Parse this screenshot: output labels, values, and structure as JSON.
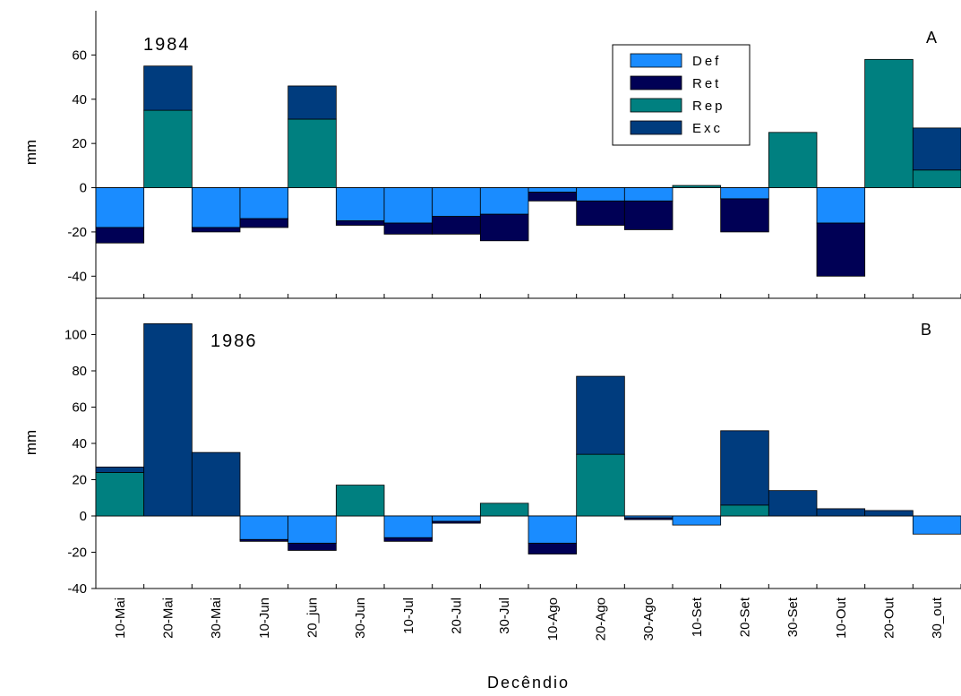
{
  "colors": {
    "Def": "#1a8cff",
    "Ret": "#000055",
    "Rep": "#008080",
    "Exc": "#003c7e"
  },
  "chart_data": [
    {
      "type": "bar",
      "panel_label": "A",
      "year_label": "1984",
      "ylabel": "mm",
      "ylim": [
        -50,
        80
      ],
      "yticks": [
        -40,
        -20,
        0,
        20,
        40,
        60
      ],
      "ytick_labels": [
        "-40",
        "-20",
        "0",
        "20",
        "40",
        "60"
      ],
      "stacked": true,
      "legend": {
        "position": "top-right",
        "entries": [
          "Def",
          "Ret",
          "Rep",
          "Exc"
        ]
      },
      "categories": [
        "10-Mai",
        "20-Mai",
        "30-Mai",
        "10-Jun",
        "20_jun",
        "30-Jun",
        "10-Jul",
        "20-Jul",
        "30-Jul",
        "10-Ago",
        "20-Ago",
        "30-Ago",
        "10-Set",
        "20-Set",
        "30-Set",
        "10-Out",
        "20-Out",
        "30_out"
      ],
      "series": [
        {
          "name": "Def",
          "values": [
            -18,
            0,
            -18,
            -14,
            0,
            -15,
            -16,
            -13,
            -12,
            -2,
            -6,
            -6,
            0,
            -5,
            0,
            -16,
            0,
            0
          ]
        },
        {
          "name": "Ret",
          "values": [
            -7,
            0,
            -2,
            -4,
            0,
            -2,
            -5,
            -8,
            -12,
            -4,
            -11,
            -13,
            0,
            -15,
            0,
            -24,
            0,
            0
          ]
        },
        {
          "name": "Rep",
          "values": [
            0,
            35,
            0,
            0,
            31,
            0,
            0,
            0,
            0,
            0,
            0,
            0,
            1,
            0,
            25,
            0,
            58,
            8
          ]
        },
        {
          "name": "Exc",
          "values": [
            0,
            20,
            0,
            0,
            15,
            0,
            0,
            0,
            0,
            0,
            0,
            0,
            0,
            0,
            0,
            0,
            0,
            19
          ]
        }
      ]
    },
    {
      "type": "bar",
      "panel_label": "B",
      "year_label": "1986",
      "ylabel": "mm",
      "ylim": [
        -40,
        120
      ],
      "yticks": [
        -40,
        -20,
        0,
        20,
        40,
        60,
        80,
        100
      ],
      "ytick_labels": [
        "-40",
        "-20",
        "0",
        "20",
        "40",
        "60",
        "80",
        "100"
      ],
      "stacked": true,
      "categories": [
        "10-Mai",
        "20-Mai",
        "30-Mai",
        "10-Jun",
        "20_jun",
        "30-Jun",
        "10-Jul",
        "20-Jul",
        "30-Jul",
        "10-Ago",
        "20-Ago",
        "30-Ago",
        "10-Set",
        "20-Set",
        "30-Set",
        "10-Out",
        "20-Out",
        "30_out"
      ],
      "series": [
        {
          "name": "Def",
          "values": [
            0,
            0,
            0,
            -13,
            -15,
            0,
            -12,
            -3,
            0,
            -15,
            0,
            -1,
            -5,
            0,
            0,
            0,
            0,
            -10
          ]
        },
        {
          "name": "Ret",
          "values": [
            0,
            0,
            0,
            -1,
            -4,
            0,
            -2,
            -1,
            0,
            -6,
            0,
            -1,
            0,
            0,
            0,
            0,
            0,
            0
          ]
        },
        {
          "name": "Rep",
          "values": [
            24,
            0,
            0,
            0,
            0,
            17,
            0,
            0,
            7,
            0,
            34,
            0,
            0,
            6,
            0,
            0,
            0,
            0
          ]
        },
        {
          "name": "Exc",
          "values": [
            3,
            106,
            35,
            0,
            0,
            0,
            0,
            0,
            0,
            0,
            43,
            0,
            0,
            41,
            14,
            4,
            3,
            0
          ]
        }
      ]
    }
  ],
  "xlabel": "Decêndio"
}
